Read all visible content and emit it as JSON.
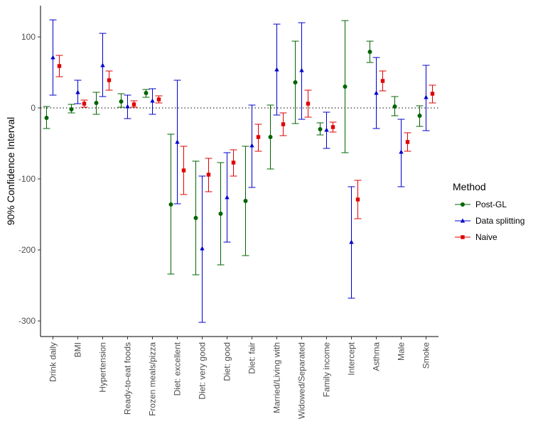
{
  "chart_data": {
    "type": "errorbar",
    "title": "",
    "xlabel": "",
    "ylabel": "90% Confidence Interval",
    "ylim": [
      -323,
      145
    ],
    "yticks": [
      -300,
      -200,
      -100,
      0,
      100
    ],
    "ytick_labels": [
      "-300",
      "-200",
      "-100",
      "0",
      "100"
    ],
    "reference_line": 0,
    "categories": [
      "Drink daily",
      "BMI",
      "Hypertension",
      "Ready-to-eat foods",
      "Frozen meals/pizza",
      "Diet: excellent",
      "Diet: very good",
      "Diet: good",
      "Diet: fair",
      "Married/Living with",
      "Widowed/Separated",
      "Family income",
      "Intercept",
      "Asthma",
      "Male",
      "Smoke"
    ],
    "legend": {
      "title": "Method",
      "position": "right"
    },
    "series": [
      {
        "name": "Post-GL",
        "color": "#006400",
        "marker": "circle",
        "estimates": [
          -14,
          -2,
          7,
          9,
          21,
          -136,
          -155,
          -149,
          -131,
          -41,
          36,
          -30,
          30,
          79,
          2,
          -11
        ],
        "lower": [
          -29,
          -7,
          -9,
          1,
          15,
          -234,
          -235,
          -221,
          -208,
          -86,
          -22,
          -38,
          -63,
          64,
          -11,
          -26
        ],
        "upper": [
          2,
          5,
          22,
          20,
          26,
          -37,
          -75,
          -77,
          -54,
          4,
          94,
          -21,
          123,
          94,
          16,
          3
        ]
      },
      {
        "name": "Data splitting",
        "color": "#0000cd",
        "marker": "triangle",
        "estimates": [
          71,
          22,
          60,
          2,
          10,
          -48,
          -198,
          -126,
          -53,
          54,
          53,
          -31,
          -189,
          21,
          -62,
          15
        ],
        "lower": [
          18,
          6,
          16,
          -15,
          -9,
          -135,
          -302,
          -189,
          -112,
          -10,
          -16,
          -57,
          -268,
          -29,
          -111,
          -32
        ],
        "upper": [
          124,
          39,
          105,
          18,
          27,
          39,
          -96,
          -63,
          4,
          118,
          120,
          -6,
          -111,
          71,
          -16,
          60
        ]
      },
      {
        "name": "Naive",
        "color": "#e00000",
        "marker": "square",
        "estimates": [
          59,
          6,
          39,
          5,
          12,
          -88,
          -94,
          -77,
          -41,
          -23,
          6,
          -27,
          -129,
          38,
          -48,
          20
        ],
        "lower": [
          44,
          1,
          25,
          1,
          7,
          -122,
          -118,
          -96,
          -61,
          -39,
          -13,
          -34,
          -156,
          24,
          -61,
          7
        ],
        "upper": [
          74,
          11,
          52,
          10,
          17,
          -54,
          -71,
          -59,
          -23,
          -7,
          25,
          -20,
          -102,
          52,
          -35,
          32
        ]
      }
    ]
  }
}
